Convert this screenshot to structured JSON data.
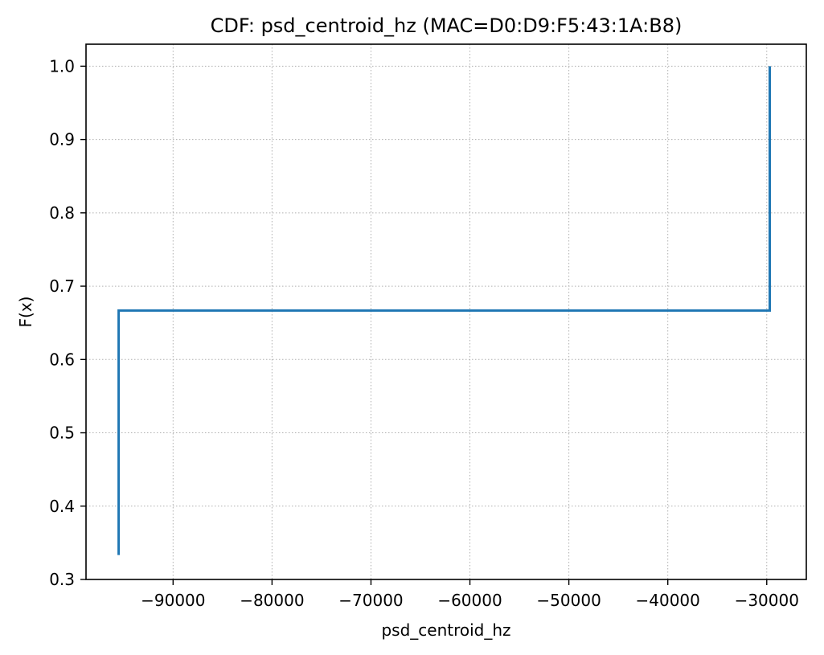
{
  "chart_data": {
    "type": "line",
    "subtype": "step-cdf",
    "title": "CDF: psd_centroid_hz (MAC=D0:D9:F5:43:1A:B8)",
    "xlabel": "psd_centroid_hz",
    "ylabel": "F(x)",
    "xlim": [
      -98800,
      -26000
    ],
    "ylim": [
      0.3,
      1.03
    ],
    "xticks": [
      -90000,
      -80000,
      -70000,
      -60000,
      -50000,
      -40000,
      -30000
    ],
    "xtick_labels": [
      "−90000",
      "−80000",
      "−70000",
      "−60000",
      "−50000",
      "−40000",
      "−30000"
    ],
    "yticks": [
      0.3,
      0.4,
      0.5,
      0.6,
      0.7,
      0.8,
      0.9,
      1.0
    ],
    "ytick_labels": [
      "0.3",
      "0.4",
      "0.5",
      "0.6",
      "0.7",
      "0.8",
      "0.9",
      "1.0"
    ],
    "grid": true,
    "grid_style": "dotted",
    "series": [
      {
        "color": "#1f77b4",
        "x": [
          -95500,
          -95500,
          -29700,
          -29700
        ],
        "y": [
          0.3333,
          0.6667,
          0.6667,
          1.0
        ]
      }
    ]
  }
}
